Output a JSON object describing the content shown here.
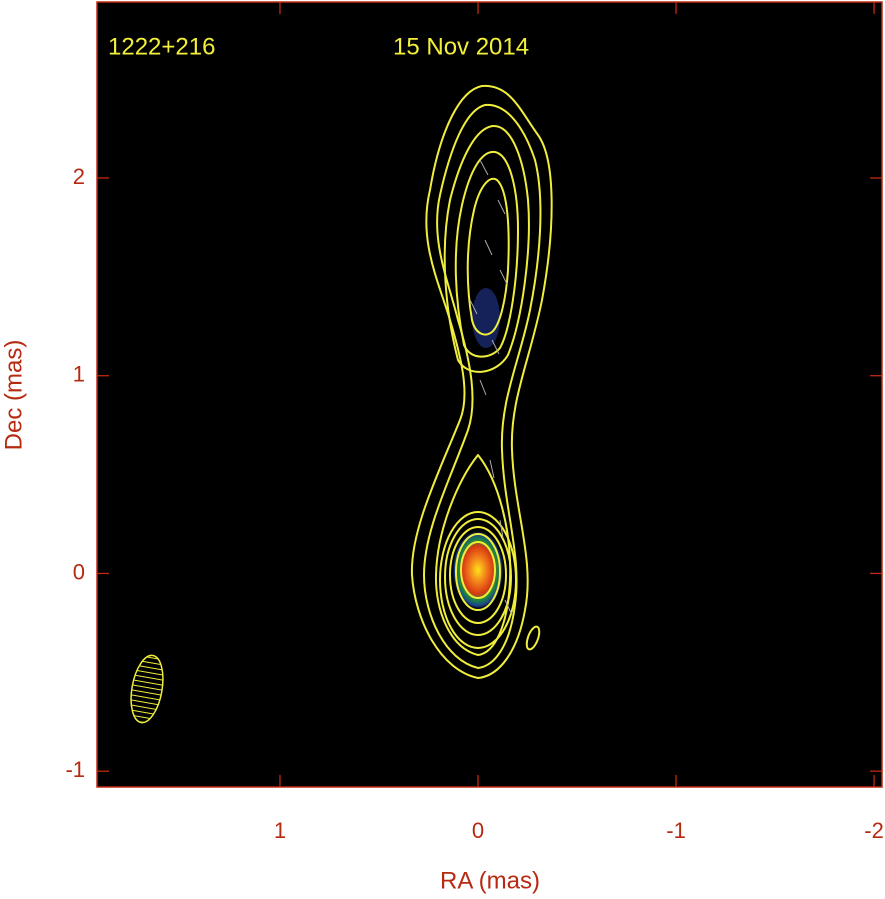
{
  "chart_data": {
    "type": "image",
    "annotations": [
      "1222+216",
      "15 Nov 2014"
    ],
    "xlabel": "RA (mas)",
    "ylabel": "Dec (mas)",
    "xlim": [
      1.924,
      -2.04
    ],
    "ylim": [
      -1.08,
      2.89
    ],
    "xticks": [
      1,
      0,
      -1,
      -2
    ],
    "yticks": [
      -1,
      0,
      1,
      2
    ]
  }
}
